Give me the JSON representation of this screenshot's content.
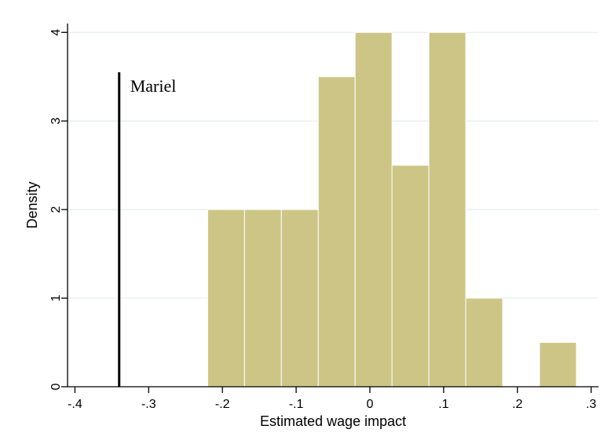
{
  "chart_data": {
    "type": "bar",
    "subtype": "histogram",
    "xlabel": "Estimated wage impact",
    "ylabel": "Density",
    "xlim": [
      -0.41,
      0.31
    ],
    "ylim": [
      0,
      4.1
    ],
    "x_ticks": [
      {
        "value": -0.4,
        "label": "-.4"
      },
      {
        "value": -0.3,
        "label": "-.3"
      },
      {
        "value": -0.2,
        "label": "-.2"
      },
      {
        "value": -0.1,
        "label": "-.1"
      },
      {
        "value": 0.0,
        "label": "0"
      },
      {
        "value": 0.1,
        "label": ".1"
      },
      {
        "value": 0.2,
        "label": ".2"
      },
      {
        "value": 0.3,
        "label": ".3"
      }
    ],
    "y_ticks": [
      {
        "value": 0,
        "label": "0"
      },
      {
        "value": 1,
        "label": "1"
      },
      {
        "value": 2,
        "label": "2"
      },
      {
        "value": 3,
        "label": "3"
      },
      {
        "value": 4,
        "label": "4"
      }
    ],
    "grid": "horizontal",
    "bins": [
      {
        "start": -0.22,
        "end": -0.17,
        "density": 2.0
      },
      {
        "start": -0.17,
        "end": -0.12,
        "density": 2.0
      },
      {
        "start": -0.12,
        "end": -0.07,
        "density": 2.0
      },
      {
        "start": -0.07,
        "end": -0.02,
        "density": 3.5
      },
      {
        "start": -0.02,
        "end": 0.03,
        "density": 4.0
      },
      {
        "start": 0.03,
        "end": 0.08,
        "density": 2.5
      },
      {
        "start": 0.08,
        "end": 0.13,
        "density": 4.0
      },
      {
        "start": 0.13,
        "end": 0.18,
        "density": 1.0
      },
      {
        "start": 0.23,
        "end": 0.28,
        "density": 0.5
      }
    ],
    "reference_line": {
      "x": -0.34,
      "y_top": 3.55,
      "label": "Mariel"
    },
    "colors": {
      "bar": "#ccc586",
      "bar_edge": "#ffffff",
      "grid": "#e6ecef",
      "axis": "#000000",
      "reference_line": "#000000"
    }
  }
}
